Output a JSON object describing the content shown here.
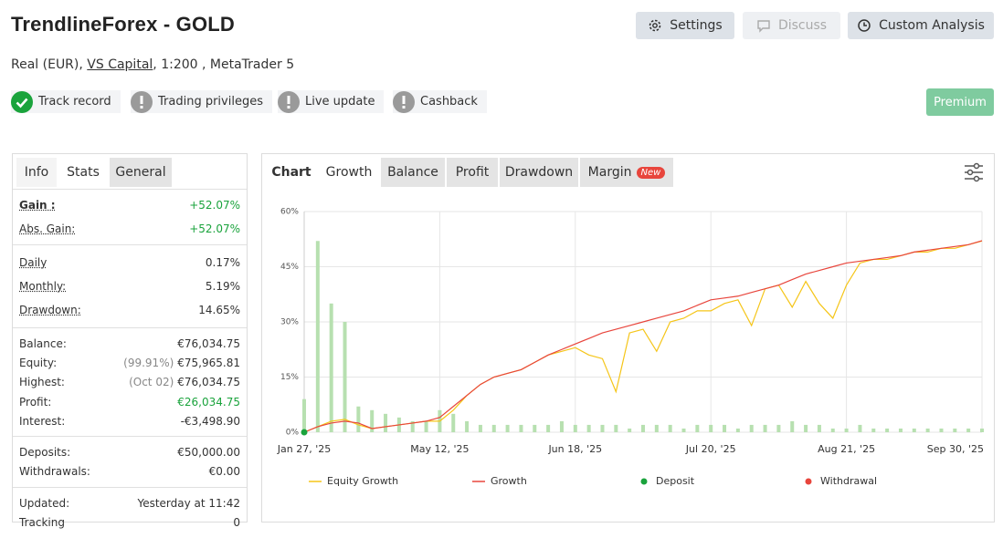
{
  "header": {
    "title": "TrendlineForex - GOLD",
    "account": [
      "Real (EUR), ",
      "VS Capital",
      ", 1:200 , MetaTrader 5"
    ],
    "buttons": [
      "Settings",
      "Discuss",
      "Custom Analysis"
    ],
    "badges": [
      "Track record",
      "Trading privileges",
      "Live update",
      "Cashback"
    ],
    "premium": "Premium"
  },
  "stats": {
    "tabs": [
      "Info",
      "Stats",
      "General"
    ],
    "groups": [
      [
        {
          "label": "Gain :",
          "value": "+52.07%",
          "color": "#1aa33c"
        },
        {
          "label": "Abs. Gain:",
          "value": "+52.07%",
          "color": "#1aa33c"
        }
      ],
      [
        {
          "label": "Daily",
          "value": "0.17%"
        },
        {
          "label": "Monthly:",
          "value": "5.19%"
        },
        {
          "label": "Drawdown:",
          "value": "14.65%"
        }
      ],
      [
        {
          "label": "Balance:",
          "value": "€76,034.75"
        },
        {
          "label": "Equity:",
          "note": "(99.91%)",
          "value": "€75,965.81"
        },
        {
          "label": "Highest:",
          "note": "(Oct 02)",
          "value": "€76,034.75"
        },
        {
          "label": "Profit:",
          "value": "€26,034.75",
          "color": "#1aa33c"
        },
        {
          "label": "Interest:",
          "value": "-€3,498.90"
        }
      ],
      [
        {
          "label": "Deposits:",
          "value": "€50,000.00"
        },
        {
          "label": "Withdrawals:",
          "value": "€0.00"
        }
      ],
      [
        {
          "label": "Updated:",
          "value": "Yesterday at 11:42"
        },
        {
          "label": "Tracking",
          "value": "0"
        }
      ]
    ]
  },
  "chart_tabs": {
    "label": "Chart",
    "tabs": [
      "Growth",
      "Balance",
      "Profit",
      "Drawdown",
      "Margin"
    ],
    "badge": "New"
  },
  "chart_data": {
    "type": "line",
    "categories": [
      "Jan 27, '25",
      null,
      null,
      null,
      null,
      null,
      null,
      null,
      null,
      null,
      "May 12, '25",
      null,
      null,
      null,
      null,
      null,
      null,
      null,
      null,
      null,
      "Jun 18, '25",
      null,
      null,
      null,
      null,
      null,
      null,
      null,
      null,
      null,
      "Jul 20, '25",
      null,
      null,
      null,
      null,
      null,
      null,
      null,
      null,
      null,
      "Aug 21, '25",
      null,
      null,
      null,
      null,
      null,
      null,
      null,
      null,
      null,
      "Sep 30, '25"
    ],
    "ylim": [
      0,
      60
    ],
    "yticks": [
      {
        "value": 0,
        "label": "0%"
      },
      {
        "value": 15,
        "label": "15%"
      },
      {
        "value": 30,
        "label": "30%"
      },
      {
        "value": 45,
        "label": "45%"
      },
      {
        "value": 60,
        "label": "60%"
      }
    ],
    "grid": true,
    "bars": {
      "color": "#b7e0b0",
      "values": [
        9,
        52,
        35,
        30,
        7,
        6,
        5,
        4,
        3,
        3,
        6,
        5,
        3,
        2,
        2,
        2,
        2,
        2,
        2,
        3,
        2,
        2,
        2,
        2,
        1,
        2,
        2,
        2,
        1,
        2,
        2,
        2,
        1,
        2,
        2,
        2,
        3,
        2,
        2,
        1,
        1,
        2,
        1,
        1,
        1,
        1,
        1,
        1,
        1,
        1,
        1
      ]
    },
    "series": [
      {
        "name": "Equity Growth",
        "color": "#f5c518",
        "kind": "line",
        "values": [
          0,
          1.5,
          3,
          3.5,
          2,
          1,
          1.5,
          2,
          2.5,
          3,
          3,
          6,
          10,
          13,
          15,
          16,
          17,
          19,
          21,
          22,
          23,
          21,
          20,
          11,
          27,
          28,
          22,
          30,
          31,
          33,
          33,
          35,
          36,
          29,
          39,
          40,
          34,
          41,
          35,
          31,
          40,
          46,
          47,
          47,
          48,
          49,
          49,
          50,
          50,
          51,
          52
        ]
      },
      {
        "name": "Growth",
        "color": "#e8453c",
        "kind": "line",
        "values": [
          0,
          1.5,
          2.5,
          3,
          2.5,
          1,
          1.5,
          2,
          2.5,
          3,
          4,
          7,
          10,
          13,
          15,
          16,
          17,
          19,
          21,
          22.5,
          24,
          25.5,
          27,
          28,
          29,
          30,
          31,
          32,
          33,
          34.5,
          36,
          36.5,
          37,
          38,
          39,
          40,
          41.5,
          43,
          44,
          45,
          46,
          46.5,
          47,
          47.5,
          48,
          49,
          49.5,
          50,
          50.5,
          51,
          52.07
        ]
      },
      {
        "name": "Deposit",
        "color": "#1aa33c",
        "kind": "dot",
        "values": [
          0,
          null,
          null,
          null,
          null,
          null,
          null,
          null,
          null,
          null,
          null,
          null,
          null,
          null,
          null,
          null,
          null,
          null,
          null,
          null,
          null,
          null,
          null,
          null,
          null,
          null,
          null,
          null,
          null,
          null,
          null,
          null,
          null,
          null,
          null,
          null,
          null,
          null,
          null,
          null,
          null,
          null,
          null,
          null,
          null,
          null,
          null,
          null,
          null,
          null,
          null
        ]
      },
      {
        "name": "Withdrawal",
        "color": "#e8453c",
        "kind": "dot",
        "values": [
          null,
          null,
          null,
          null,
          null,
          null,
          null,
          null,
          null,
          null,
          null,
          null,
          null,
          null,
          null,
          null,
          null,
          null,
          null,
          null,
          null,
          null,
          null,
          null,
          null,
          null,
          null,
          null,
          null,
          null,
          null,
          null,
          null,
          null,
          null,
          null,
          null,
          null,
          null,
          null,
          null,
          null,
          null,
          null,
          null,
          null,
          null,
          null,
          null,
          null,
          null
        ]
      }
    ]
  }
}
